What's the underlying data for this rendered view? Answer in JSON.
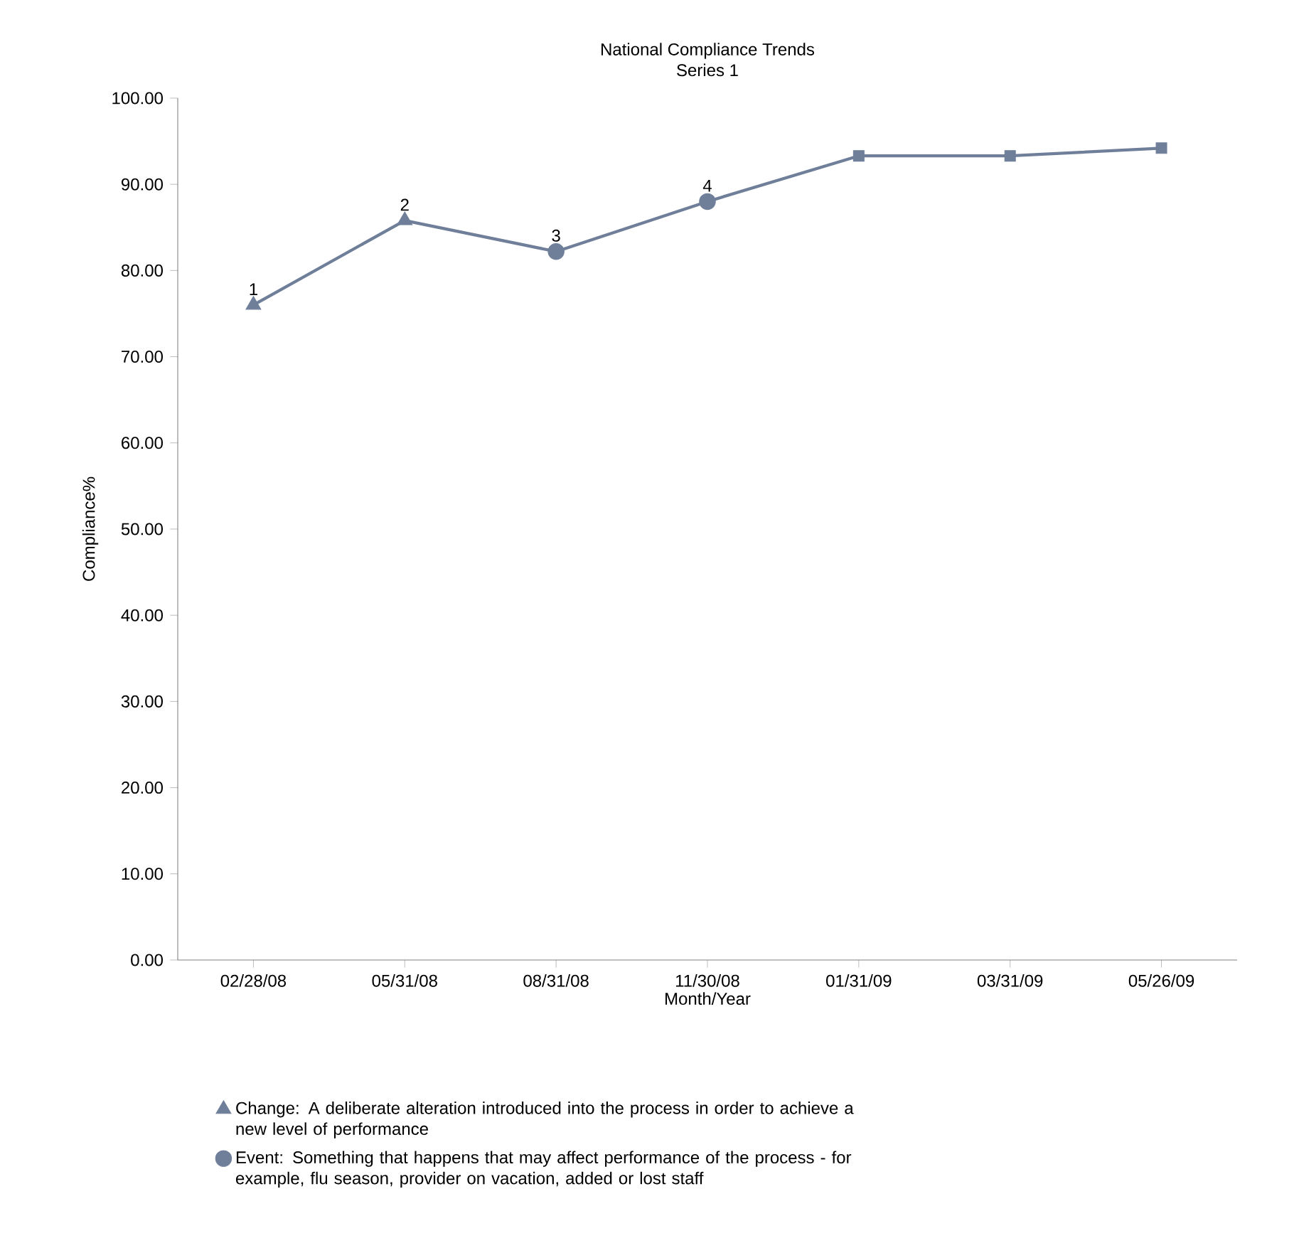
{
  "chart_data": {
    "type": "line",
    "title": "National Compliance Trends",
    "subtitle": "Series 1",
    "xlabel": "Month/Year",
    "ylabel": "Compliance%",
    "categories": [
      "02/28/08",
      "05/31/08",
      "08/31/08",
      "11/30/08",
      "01/31/09",
      "03/31/09",
      "05/26/09"
    ],
    "series": [
      {
        "type": "line",
        "color": "#6f7f99",
        "marker": "none",
        "line_style": "solid",
        "values": [
          76,
          85.8,
          82.2,
          88,
          93.3,
          93.3,
          94.2
        ]
      },
      {
        "type": "scatter",
        "name": "Change: A deliberate alteration introduced into the process in order to achieve a new level of performance",
        "color": "#6f7f99",
        "marker": "triangle",
        "values": [
          76,
          85.8,
          null,
          null,
          null,
          null,
          null
        ]
      },
      {
        "type": "scatter",
        "name": "Event: Something that happens that may affect performance of the process - for example, flu season, provider on vacation, added or lost staff",
        "color": "#6f7f99",
        "marker": "circle",
        "values": [
          null,
          null,
          82.2,
          88,
          null,
          null,
          null
        ]
      },
      {
        "type": "scatter",
        "color": "#6f7f99",
        "marker": "square",
        "values": [
          null,
          null,
          null,
          null,
          93.3,
          93.3,
          94.2
        ]
      }
    ],
    "ylim": [
      0,
      100
    ],
    "yticks": [
      {
        "value": 0,
        "label": "0.00"
      },
      {
        "value": 10,
        "label": "10.00"
      },
      {
        "value": 20,
        "label": "20.00"
      },
      {
        "value": 30,
        "label": "30.00"
      },
      {
        "value": 40,
        "label": "40.00"
      },
      {
        "value": 50,
        "label": "50.00"
      },
      {
        "value": 60,
        "label": "60.00"
      },
      {
        "value": 70,
        "label": "70.00"
      },
      {
        "value": 80,
        "label": "80.00"
      },
      {
        "value": 90,
        "label": "90.00"
      },
      {
        "value": 100,
        "label": "100.00"
      }
    ],
    "annotations": [
      {
        "text": "1",
        "x": "02/28/08",
        "y": 76
      },
      {
        "text": "2",
        "x": "05/31/08",
        "y": 85.8
      },
      {
        "text": "3",
        "x": "08/31/08",
        "y": 82.2
      },
      {
        "text": "4",
        "x": "11/30/08",
        "y": 88
      }
    ],
    "grid": false,
    "legend": "bottom"
  }
}
